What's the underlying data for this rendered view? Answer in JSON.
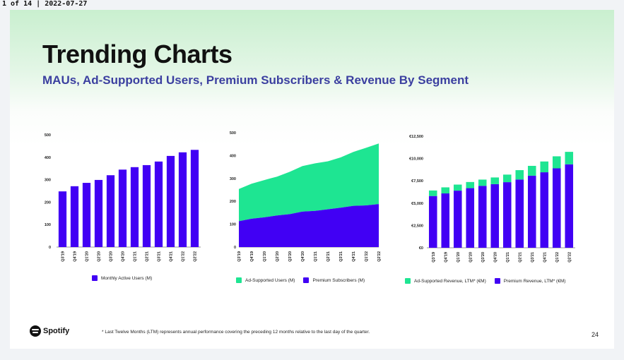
{
  "header": {
    "page_label": "1 of 14 | 2022-07-27"
  },
  "slide": {
    "title": "Trending Charts",
    "subtitle": "MAUs, Ad-Supported Users, Premium Subscribers & Revenue By Segment",
    "footnote": "* Last Twelve Months (LTM) represents annual performance covering the preceding 12 months relative to the last day of the quarter.",
    "page_number": "24",
    "logo_text": "Spotify"
  },
  "colors": {
    "purple": "#4100f4",
    "green": "#1ee592"
  },
  "chart_data": [
    {
      "type": "bar",
      "categories": [
        "Q3'19",
        "Q4'19",
        "Q1'20",
        "Q2'20",
        "Q3'20",
        "Q4'20",
        "Q1'21",
        "Q2'21",
        "Q3'21",
        "Q4'21",
        "Q1'22",
        "Q2'22"
      ],
      "series": [
        {
          "name": "Monthly Active Users (M)",
          "values": [
            248,
            271,
            286,
            299,
            320,
            345,
            356,
            365,
            381,
            406,
            422,
            433
          ],
          "color": "#4100f4"
        }
      ],
      "yticks": [
        "0",
        "100",
        "200",
        "300",
        "400",
        "500"
      ],
      "ylim": [
        0,
        500
      ]
    },
    {
      "type": "area",
      "categories": [
        "Q3'19",
        "Q4'19",
        "Q1'20",
        "Q2'20",
        "Q3'20",
        "Q4'20",
        "Q1'21",
        "Q2'21",
        "Q3'21",
        "Q4'21",
        "Q1'22",
        "Q2'22"
      ],
      "series": [
        {
          "name": "Ad-Supported Users (M)",
          "values": [
            141,
            153,
            163,
            170,
            185,
            199,
            208,
            210,
            220,
            236,
            252,
            265
          ],
          "color": "#1ee592"
        },
        {
          "name": "Premium Subscribers (M)",
          "values": [
            113,
            124,
            130,
            138,
            144,
            155,
            158,
            165,
            172,
            180,
            182,
            188
          ],
          "color": "#4100f4"
        }
      ],
      "yticks": [
        "0",
        "100",
        "200",
        "300",
        "400",
        "500"
      ],
      "ylim": [
        0,
        500
      ],
      "stacked": true
    },
    {
      "type": "bar",
      "stacked": true,
      "categories": [
        "Q3'19",
        "Q4'19",
        "Q1'20",
        "Q2'20",
        "Q3'20",
        "Q4'20",
        "Q1'21",
        "Q2'21",
        "Q3'21",
        "Q4'21",
        "Q1'22",
        "Q2'22"
      ],
      "series": [
        {
          "name": "Premium Revenue, LTM* (€M)",
          "values": [
            5800,
            6090,
            6400,
            6680,
            6940,
            7130,
            7350,
            7650,
            8080,
            8460,
            8900,
            9350
          ],
          "color": "#4100f4"
        },
        {
          "name": "Ad-Supported Revenue, LTM* (€M)",
          "values": [
            620,
            680,
            680,
            690,
            700,
            750,
            850,
            1050,
            1100,
            1210,
            1350,
            1400
          ],
          "color": "#1ee592"
        }
      ],
      "yticks": [
        "€0",
        "€2,500",
        "€5,000",
        "€7,500",
        "€10,000",
        "€12,500"
      ],
      "ylim": [
        0,
        12500
      ]
    }
  ]
}
